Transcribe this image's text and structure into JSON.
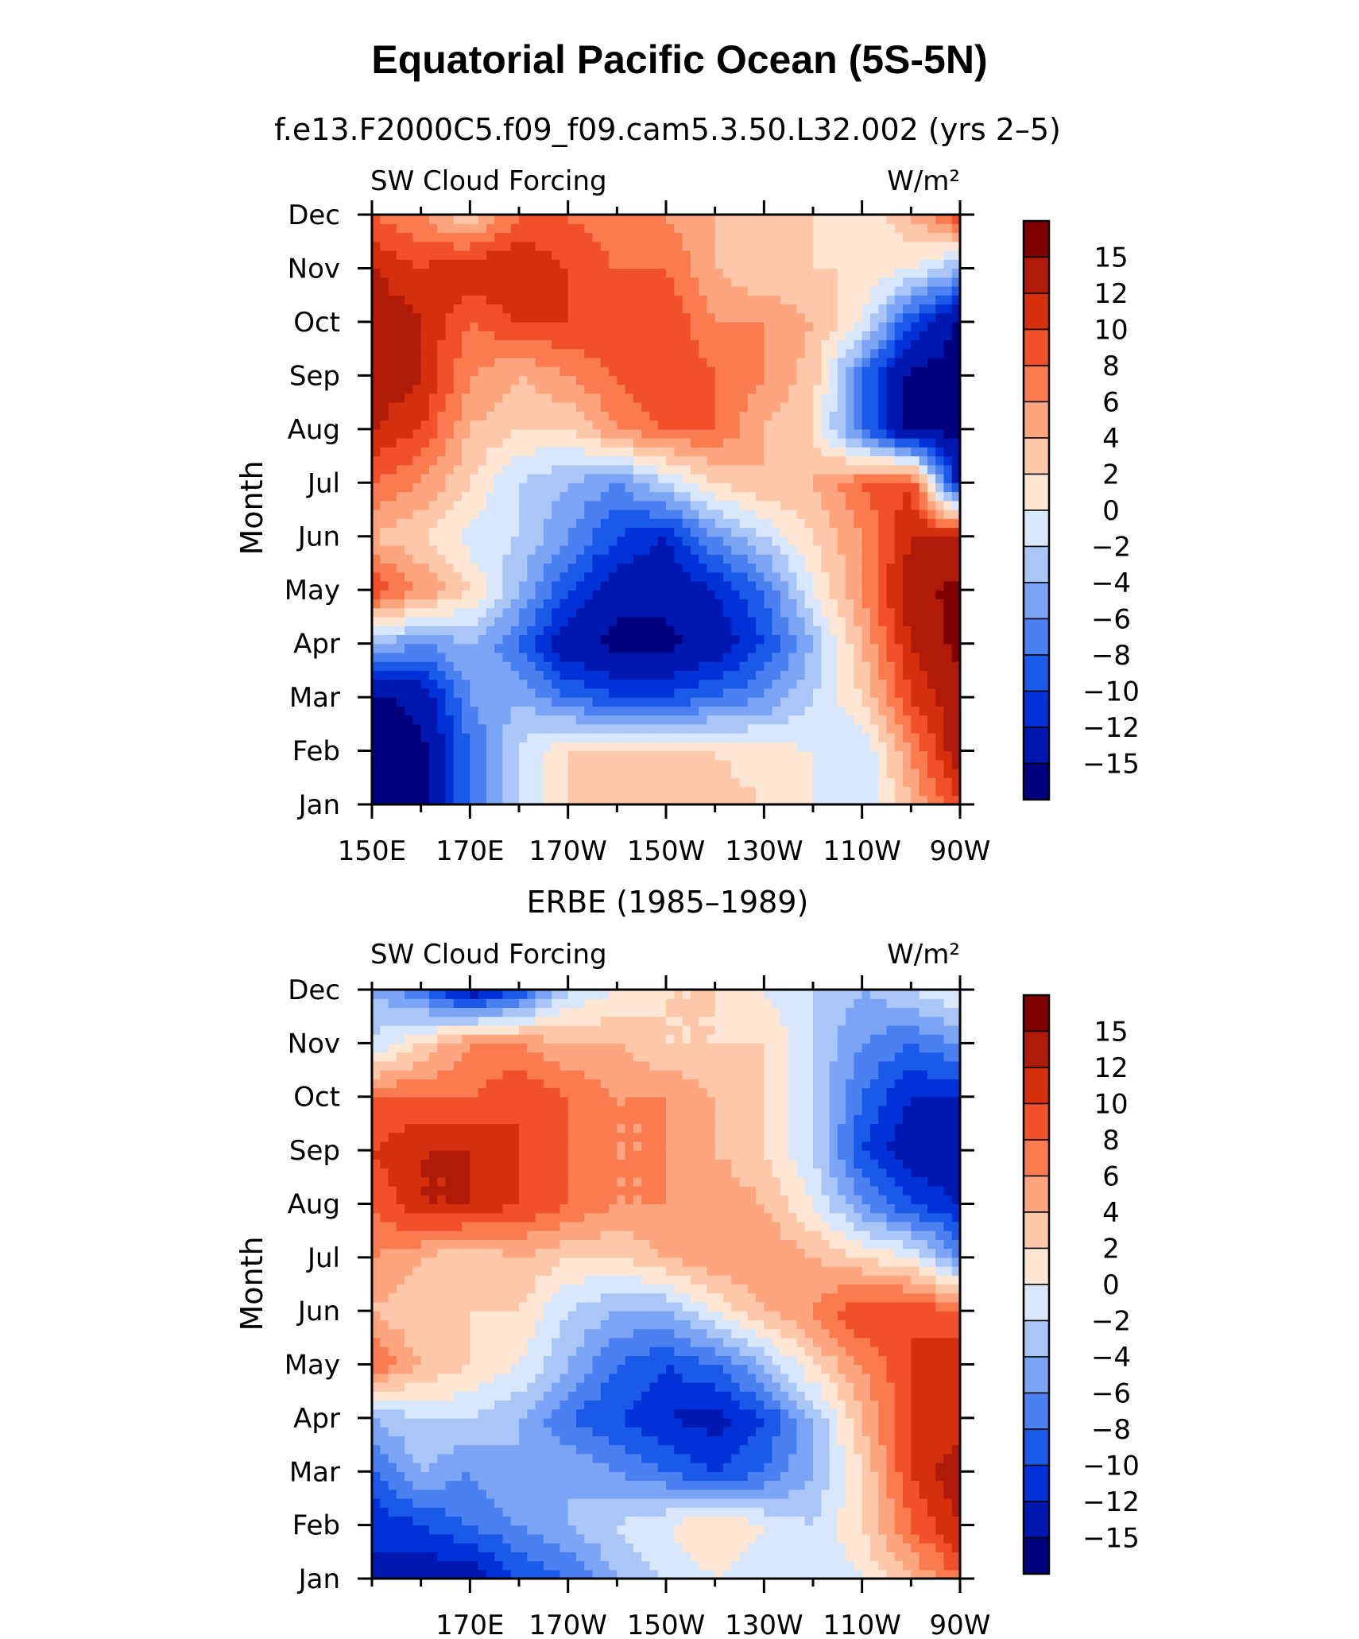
{
  "figure": {
    "title": "Equatorial Pacific Ocean (5S-5N)"
  },
  "chart_data": [
    {
      "type": "heatmap",
      "title": "f.e13.F2000C5.f09_f09.cam5.3.50.L32.002 (yrs 2–5)",
      "left_label": "SW Cloud Forcing",
      "units": "W/m²",
      "xlabel": "",
      "ylabel": "Month",
      "x_ticks": [
        150,
        170,
        190,
        210,
        230,
        250,
        270
      ],
      "x_tick_labels": [
        "150E",
        "170E",
        "170W",
        "150W",
        "130W",
        "110W",
        "90W"
      ],
      "y_ticks": [
        1,
        2,
        3,
        4,
        5,
        6,
        7,
        8,
        9,
        10,
        11,
        12
      ],
      "y_tick_labels": [
        "Jan",
        "Feb",
        "Mar",
        "Apr",
        "May",
        "Jun",
        "Jul",
        "Aug",
        "Sep",
        "Oct",
        "Nov",
        "Dec"
      ],
      "xlim": [
        150,
        270
      ],
      "ylim": [
        1,
        12
      ],
      "lon": [
        150,
        160,
        170,
        180,
        190,
        200,
        210,
        220,
        230,
        240,
        250,
        260,
        270
      ],
      "month": [
        1,
        2,
        3,
        4,
        5,
        6,
        7,
        8,
        9,
        10,
        11,
        12
      ],
      "values": [
        [
          -16,
          -16,
          -8,
          -2,
          2,
          4,
          4,
          3,
          2,
          0,
          -2,
          4,
          10
        ],
        [
          -16,
          -16,
          -8,
          -2,
          2,
          3,
          3,
          2,
          1,
          0,
          -2,
          6,
          14
        ],
        [
          -16,
          -14,
          -6,
          -4,
          -8,
          -10,
          -10,
          -8,
          -6,
          -2,
          2,
          10,
          14
        ],
        [
          -4,
          -6,
          -4,
          -8,
          -14,
          -16,
          -16,
          -14,
          -10,
          -4,
          4,
          12,
          16
        ],
        [
          10,
          6,
          2,
          -4,
          -10,
          -14,
          -14,
          -12,
          -8,
          0,
          6,
          14,
          16
        ],
        [
          4,
          2,
          -1,
          -2,
          -6,
          -10,
          -12,
          -6,
          -2,
          2,
          6,
          12,
          12
        ],
        [
          8,
          6,
          2,
          -2,
          -4,
          -6,
          -2,
          2,
          4,
          4,
          8,
          10,
          -14
        ],
        [
          12,
          10,
          4,
          2,
          2,
          6,
          8,
          8,
          4,
          2,
          -8,
          -16,
          -16
        ],
        [
          14,
          12,
          6,
          4,
          6,
          8,
          10,
          8,
          6,
          3,
          -8,
          -16,
          -16
        ],
        [
          14,
          12,
          8,
          10,
          10,
          10,
          10,
          6,
          6,
          4,
          0,
          -10,
          -16
        ],
        [
          12,
          10,
          12,
          12,
          10,
          8,
          8,
          4,
          2,
          2,
          2,
          0,
          -4
        ],
        [
          8,
          6,
          2,
          8,
          8,
          6,
          6,
          4,
          4,
          2,
          0,
          4,
          10
        ]
      ],
      "contour_levels": [
        -15,
        -12,
        -10,
        -8,
        -6,
        -4,
        -2,
        0,
        2,
        4,
        6,
        8,
        10,
        12,
        15
      ],
      "colorbar_labels": [
        "15",
        "12",
        "10",
        "8",
        "6",
        "4",
        "2",
        "0",
        "−2",
        "−4",
        "−6",
        "−8",
        "−10",
        "−12",
        "−15"
      ],
      "colors": [
        "#00007f",
        "#0018b0",
        "#0032d8",
        "#1b5ae8",
        "#4a80f0",
        "#7ba4f5",
        "#a9c6f7",
        "#d8e7fb",
        "#fde7d4",
        "#fdc8aa",
        "#fca57f",
        "#f97b4f",
        "#f0502a",
        "#d4300e",
        "#b01a08",
        "#7f0000"
      ]
    },
    {
      "type": "heatmap",
      "title": "ERBE (1985–1989)",
      "left_label": "SW Cloud Forcing",
      "units": "W/m²",
      "xlabel": "",
      "ylabel": "Month",
      "x_ticks": [
        170,
        190,
        210,
        230,
        250,
        270
      ],
      "x_tick_labels": [
        "170E",
        "170W",
        "150W",
        "130W",
        "110W",
        "90W"
      ],
      "y_ticks": [
        1,
        2,
        3,
        4,
        5,
        6,
        7,
        8,
        9,
        10,
        11,
        12
      ],
      "y_tick_labels": [
        "Jan",
        "Feb",
        "Mar",
        "Apr",
        "May",
        "Jun",
        "Jul",
        "Aug",
        "Sep",
        "Oct",
        "Nov",
        "Dec"
      ],
      "xlim": [
        150,
        270
      ],
      "ylim": [
        1,
        12
      ],
      "lon": [
        150,
        160,
        170,
        180,
        190,
        200,
        210,
        220,
        230,
        240,
        250,
        260,
        270
      ],
      "month": [
        1,
        2,
        3,
        4,
        5,
        6,
        7,
        8,
        9,
        10,
        11,
        12
      ],
      "values": [
        [
          -12,
          -14,
          -14,
          -10,
          -8,
          -4,
          -2,
          0,
          -2,
          -2,
          0,
          4,
          8
        ],
        [
          -12,
          -10,
          -8,
          -6,
          -4,
          -2,
          0,
          2,
          0,
          -2,
          2,
          8,
          12
        ],
        [
          -8,
          -4,
          -6,
          -4,
          -4,
          -6,
          -8,
          -10,
          -8,
          -4,
          2,
          10,
          14
        ],
        [
          -4,
          -2,
          -2,
          -4,
          -8,
          -10,
          -12,
          -13,
          -10,
          -4,
          4,
          10,
          10
        ],
        [
          8,
          4,
          2,
          0,
          -4,
          -8,
          -10,
          -8,
          -4,
          2,
          6,
          10,
          12
        ],
        [
          4,
          2,
          2,
          2,
          -2,
          -4,
          -4,
          0,
          4,
          6,
          10,
          10,
          8
        ],
        [
          6,
          4,
          2,
          4,
          2,
          2,
          4,
          6,
          6,
          4,
          2,
          0,
          -6
        ],
        [
          8,
          12,
          12,
          10,
          8,
          6,
          6,
          6,
          4,
          0,
          -6,
          -10,
          -12
        ],
        [
          10,
          12,
          12,
          10,
          8,
          6,
          6,
          4,
          2,
          -2,
          -10,
          -14,
          -14
        ],
        [
          8,
          8,
          8,
          10,
          8,
          6,
          6,
          4,
          2,
          -2,
          -8,
          -12,
          -12
        ],
        [
          -2,
          2,
          6,
          6,
          4,
          4,
          2,
          2,
          2,
          -2,
          -6,
          -8,
          -6
        ],
        [
          -4,
          -8,
          -14,
          -10,
          -2,
          0,
          2,
          2,
          0,
          -2,
          -4,
          -2,
          0
        ]
      ],
      "contour_levels": [
        -15,
        -12,
        -10,
        -8,
        -6,
        -4,
        -2,
        0,
        2,
        4,
        6,
        8,
        10,
        12,
        15
      ],
      "colorbar_labels": [
        "15",
        "12",
        "10",
        "8",
        "6",
        "4",
        "2",
        "0",
        "−2",
        "−4",
        "−6",
        "−8",
        "−10",
        "−12",
        "−15"
      ],
      "colors": [
        "#00007f",
        "#0018b0",
        "#0032d8",
        "#1b5ae8",
        "#4a80f0",
        "#7ba4f5",
        "#a9c6f7",
        "#d8e7fb",
        "#fde7d4",
        "#fdc8aa",
        "#fca57f",
        "#f97b4f",
        "#f0502a",
        "#d4300e",
        "#b01a08",
        "#7f0000"
      ]
    }
  ]
}
